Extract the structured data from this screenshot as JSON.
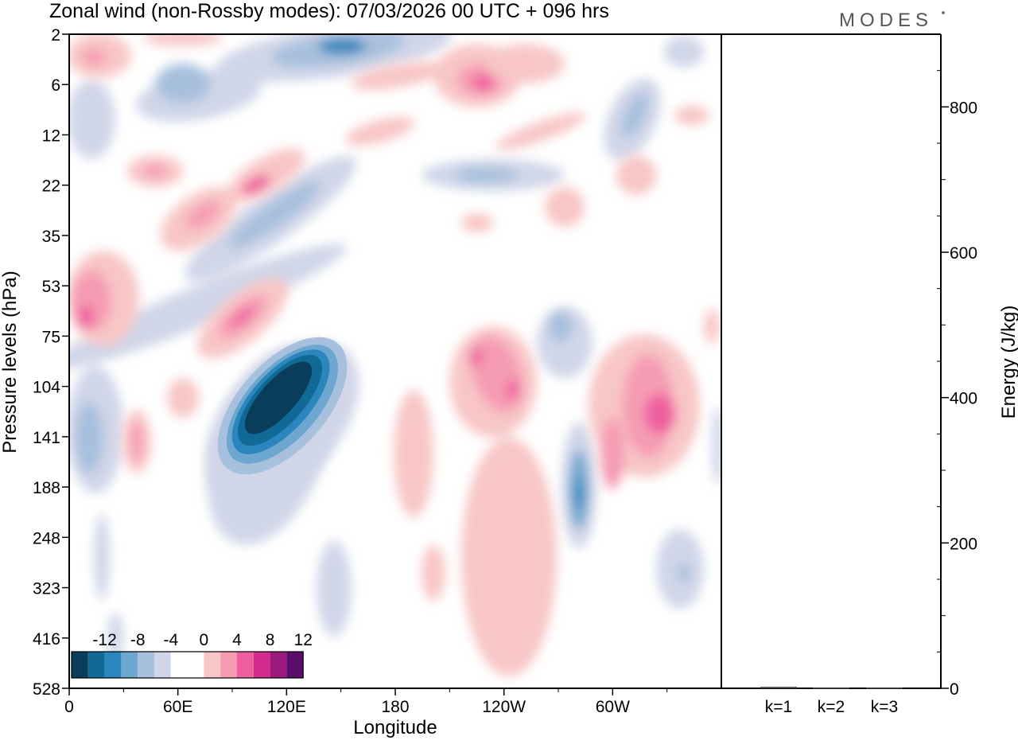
{
  "title": "Zonal wind (non-Rossby modes):  07/03/2026  00 UTC  + 096 hrs",
  "logo": "MODES",
  "chart_data": [
    {
      "type": "heatmap",
      "title": "Zonal wind (non-Rossby modes):  07/03/2026  00 UTC  + 096 hrs",
      "xlabel": "Longitude",
      "ylabel": "Pressure levels (hPa)",
      "x_ticks": [
        {
          "lon": 0,
          "label": "0"
        },
        {
          "lon": 60,
          "label": "60E"
        },
        {
          "lon": 120,
          "label": "120E"
        },
        {
          "lon": 180,
          "label": "180"
        },
        {
          "lon": 240,
          "label": "120W"
        },
        {
          "lon": 300,
          "label": "60W"
        }
      ],
      "xlim": [
        0,
        360
      ],
      "y_levels": [
        "2",
        "6",
        "12",
        "22",
        "35",
        "53",
        "75",
        "104",
        "141",
        "188",
        "248",
        "323",
        "416",
        "528"
      ],
      "colorbar": {
        "labels": [
          "-12",
          "-8",
          "-4",
          "0",
          "4",
          "8",
          "12"
        ],
        "colors": [
          "#0a3d5c",
          "#116a96",
          "#2a86bc",
          "#6da6cf",
          "#a7c0dd",
          "#d0d6e8",
          "#ffffff",
          "#ffffff",
          "#f8c6c6",
          "#f59bb4",
          "#ee5f9f",
          "#d42c8c",
          "#9c1a7d",
          "#5a0d6b"
        ]
      },
      "features": [
        {
          "lon": 110,
          "level": "141",
          "value": -14
        },
        {
          "lon": 150,
          "level": "2",
          "value": -8
        },
        {
          "lon": 248,
          "level": "6",
          "value": 10
        },
        {
          "lon": 10,
          "level": "75",
          "value": 10
        },
        {
          "lon": 95,
          "level": "75",
          "value": 10
        },
        {
          "lon": 245,
          "level": "104",
          "value": 10
        },
        {
          "lon": 320,
          "level": "141",
          "value": 8
        },
        {
          "lon": 283,
          "level": "188",
          "value": -8
        }
      ]
    },
    {
      "type": "bar",
      "categories": [
        "k=1",
        "k=2",
        "k=3"
      ],
      "values": [
        2,
        1,
        1
      ],
      "ylabel": "Energy (J/kg)",
      "ylim": [
        0,
        900
      ],
      "y_ticks": [
        {
          "value": 0,
          "label": "0"
        },
        {
          "value": 200,
          "label": "200"
        },
        {
          "value": 400,
          "label": "400"
        },
        {
          "value": 600,
          "label": "600"
        },
        {
          "value": 800,
          "label": "800"
        }
      ]
    }
  ]
}
